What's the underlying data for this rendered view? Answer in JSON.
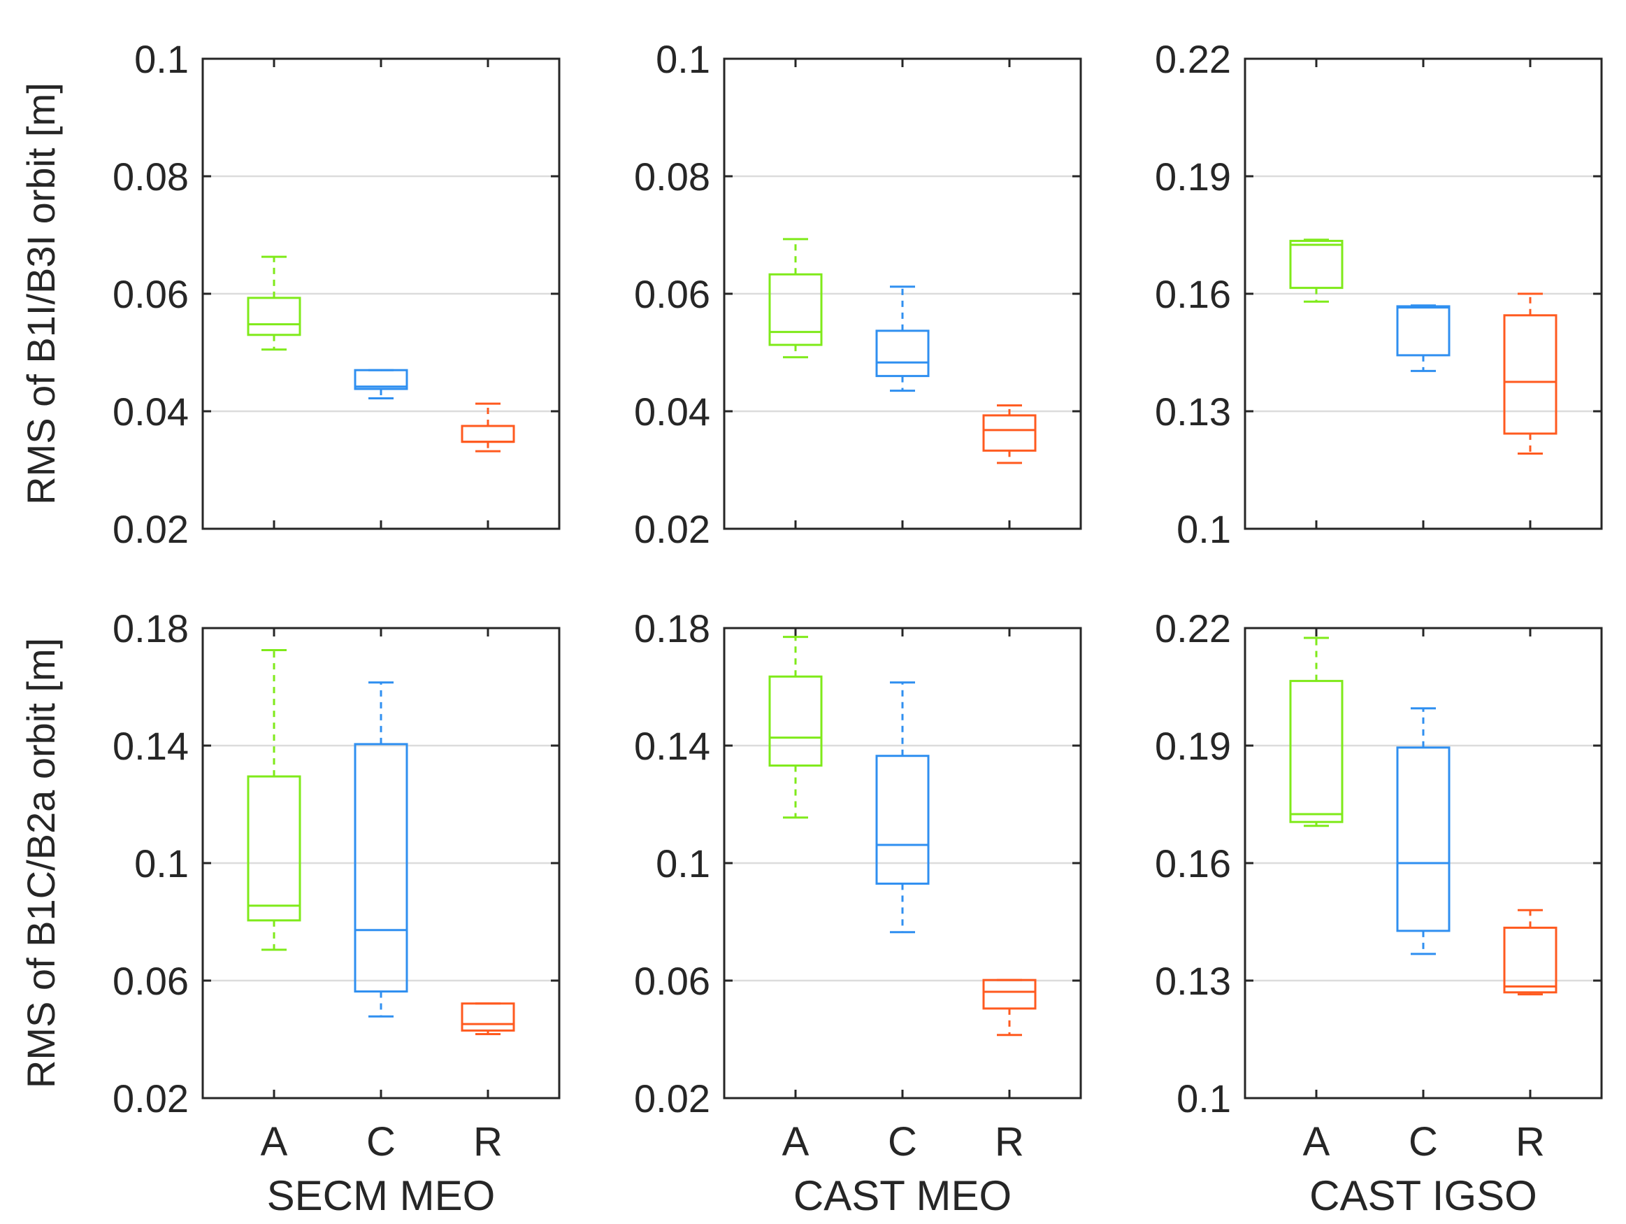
{
  "chart_data": [
    {
      "type": "box",
      "row": 1,
      "col": 1,
      "ylabel": "RMS of B1I/B3I orbit [m]",
      "xlabel": "",
      "ylim": [
        0.02,
        0.1
      ],
      "yticks": [
        "0.02",
        "0.04",
        "0.06",
        "0.08",
        "0.1"
      ],
      "categories": [
        "A",
        "C",
        "R"
      ],
      "show_category_labels": false,
      "boxes": [
        {
          "category": "A",
          "min": 0.0505,
          "q1": 0.053,
          "median": 0.0548,
          "q3": 0.0593,
          "max": 0.0663
        },
        {
          "category": "C",
          "min": 0.0422,
          "q1": 0.0438,
          "median": 0.0442,
          "q3": 0.047,
          "max": 0.047
        },
        {
          "category": "R",
          "min": 0.0332,
          "q1": 0.0348,
          "median": 0.0348,
          "q3": 0.0375,
          "max": 0.0413
        }
      ]
    },
    {
      "type": "box",
      "row": 1,
      "col": 2,
      "ylabel": "",
      "xlabel": "",
      "ylim": [
        0.02,
        0.1
      ],
      "yticks": [
        "0.02",
        "0.04",
        "0.06",
        "0.08",
        "0.1"
      ],
      "categories": [
        "A",
        "C",
        "R"
      ],
      "show_category_labels": false,
      "boxes": [
        {
          "category": "A",
          "min": 0.0492,
          "q1": 0.0513,
          "median": 0.0535,
          "q3": 0.0633,
          "max": 0.0693
        },
        {
          "category": "C",
          "min": 0.0435,
          "q1": 0.046,
          "median": 0.0483,
          "q3": 0.0537,
          "max": 0.0612
        },
        {
          "category": "R",
          "min": 0.0312,
          "q1": 0.0333,
          "median": 0.0368,
          "q3": 0.0393,
          "max": 0.041
        }
      ]
    },
    {
      "type": "box",
      "row": 1,
      "col": 3,
      "ylabel": "",
      "xlabel": "",
      "ylim": [
        0.1,
        0.22
      ],
      "yticks": [
        "0.1",
        "0.13",
        "0.16",
        "0.19",
        "0.22"
      ],
      "categories": [
        "A",
        "C",
        "R"
      ],
      "show_category_labels": false,
      "boxes": [
        {
          "category": "A",
          "min": 0.158,
          "q1": 0.1615,
          "median": 0.1725,
          "q3": 0.1735,
          "max": 0.1738
        },
        {
          "category": "C",
          "min": 0.1403,
          "q1": 0.1443,
          "median": 0.1565,
          "q3": 0.1568,
          "max": 0.157
        },
        {
          "category": "R",
          "min": 0.1192,
          "q1": 0.1243,
          "median": 0.1375,
          "q3": 0.1545,
          "max": 0.16
        }
      ]
    },
    {
      "type": "box",
      "row": 2,
      "col": 1,
      "ylabel": "RMS of B1C/B2a orbit [m]",
      "xlabel": "SECM MEO",
      "ylim": [
        0.02,
        0.18
      ],
      "yticks": [
        "0.02",
        "0.06",
        "0.1",
        "0.14",
        "0.18"
      ],
      "categories": [
        "A",
        "C",
        "R"
      ],
      "show_category_labels": true,
      "boxes": [
        {
          "category": "A",
          "min": 0.0705,
          "q1": 0.0805,
          "median": 0.0855,
          "q3": 0.1295,
          "max": 0.1725
        },
        {
          "category": "C",
          "min": 0.0478,
          "q1": 0.0563,
          "median": 0.0772,
          "q3": 0.1405,
          "max": 0.1615
        },
        {
          "category": "R",
          "min": 0.0418,
          "q1": 0.043,
          "median": 0.0452,
          "q3": 0.0522,
          "max": 0.0522
        }
      ]
    },
    {
      "type": "box",
      "row": 2,
      "col": 2,
      "ylabel": "",
      "xlabel": "CAST MEO",
      "ylim": [
        0.02,
        0.18
      ],
      "yticks": [
        "0.02",
        "0.06",
        "0.1",
        "0.14",
        "0.18"
      ],
      "categories": [
        "A",
        "C",
        "R"
      ],
      "show_category_labels": true,
      "boxes": [
        {
          "category": "A",
          "min": 0.1155,
          "q1": 0.1332,
          "median": 0.1427,
          "q3": 0.1635,
          "max": 0.177
        },
        {
          "category": "C",
          "min": 0.0765,
          "q1": 0.093,
          "median": 0.1062,
          "q3": 0.1365,
          "max": 0.1615
        },
        {
          "category": "R",
          "min": 0.0415,
          "q1": 0.0505,
          "median": 0.0562,
          "q3": 0.0602,
          "max": 0.0602
        }
      ]
    },
    {
      "type": "box",
      "row": 2,
      "col": 3,
      "ylabel": "",
      "xlabel": "CAST IGSO",
      "ylim": [
        0.1,
        0.22
      ],
      "yticks": [
        "0.1",
        "0.13",
        "0.16",
        "0.19",
        "0.22"
      ],
      "categories": [
        "A",
        "C",
        "R"
      ],
      "show_category_labels": true,
      "boxes": [
        {
          "category": "A",
          "min": 0.1695,
          "q1": 0.1705,
          "median": 0.1725,
          "q3": 0.2065,
          "max": 0.2175
        },
        {
          "category": "C",
          "min": 0.1368,
          "q1": 0.1427,
          "median": 0.16,
          "q3": 0.1895,
          "max": 0.1995
        },
        {
          "category": "R",
          "min": 0.1265,
          "q1": 0.127,
          "median": 0.1285,
          "q3": 0.1435,
          "max": 0.148
        }
      ]
    }
  ],
  "colors": {
    "A": "#7fea1a",
    "C": "#2f8ff0",
    "R": "#ff5a1f",
    "axis": "#262626",
    "grid": "#dcdcdc"
  }
}
